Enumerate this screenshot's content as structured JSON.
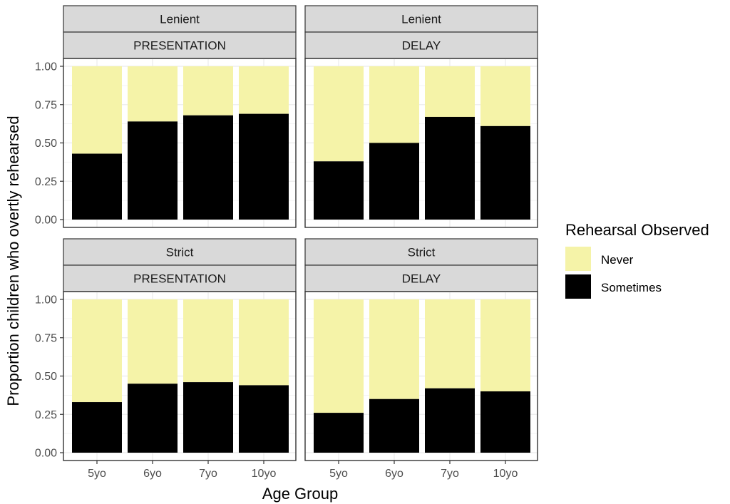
{
  "chart_data": {
    "type": "bar",
    "stacked": true,
    "xlabel": "Age Group",
    "ylabel": "Proportion children who overtly rehearsed",
    "categories": [
      "5yo",
      "6yo",
      "7yo",
      "10yo"
    ],
    "y_ticks": [
      "0.00",
      "0.25",
      "0.50",
      "0.75",
      "1.00"
    ],
    "ylim": [
      0,
      1
    ],
    "grid": true,
    "legend": {
      "title": "Rehearsal Observed",
      "position": "right",
      "items": [
        {
          "label": "Never",
          "color": "#f5f3a8"
        },
        {
          "label": "Sometimes",
          "color": "#000000"
        }
      ]
    },
    "colors": {
      "Never": "#f5f3a8",
      "Sometimes": "#000000",
      "strip_bg": "#d9d9d9"
    },
    "panels": [
      {
        "row_label": "Lenient",
        "col_label": "PRESENTATION",
        "series": [
          {
            "name": "Sometimes",
            "values": [
              0.43,
              0.64,
              0.68,
              0.69
            ]
          },
          {
            "name": "Never",
            "values": [
              0.57,
              0.36,
              0.32,
              0.31
            ]
          }
        ]
      },
      {
        "row_label": "Lenient",
        "col_label": "DELAY",
        "series": [
          {
            "name": "Sometimes",
            "values": [
              0.38,
              0.5,
              0.67,
              0.61
            ]
          },
          {
            "name": "Never",
            "values": [
              0.62,
              0.5,
              0.33,
              0.39
            ]
          }
        ]
      },
      {
        "row_label": "Strict",
        "col_label": "PRESENTATION",
        "series": [
          {
            "name": "Sometimes",
            "values": [
              0.33,
              0.45,
              0.46,
              0.44
            ]
          },
          {
            "name": "Never",
            "values": [
              0.67,
              0.55,
              0.54,
              0.56
            ]
          }
        ]
      },
      {
        "row_label": "Strict",
        "col_label": "DELAY",
        "series": [
          {
            "name": "Sometimes",
            "values": [
              0.26,
              0.35,
              0.42,
              0.4
            ]
          },
          {
            "name": "Never",
            "values": [
              0.74,
              0.65,
              0.58,
              0.6
            ]
          }
        ]
      }
    ]
  }
}
